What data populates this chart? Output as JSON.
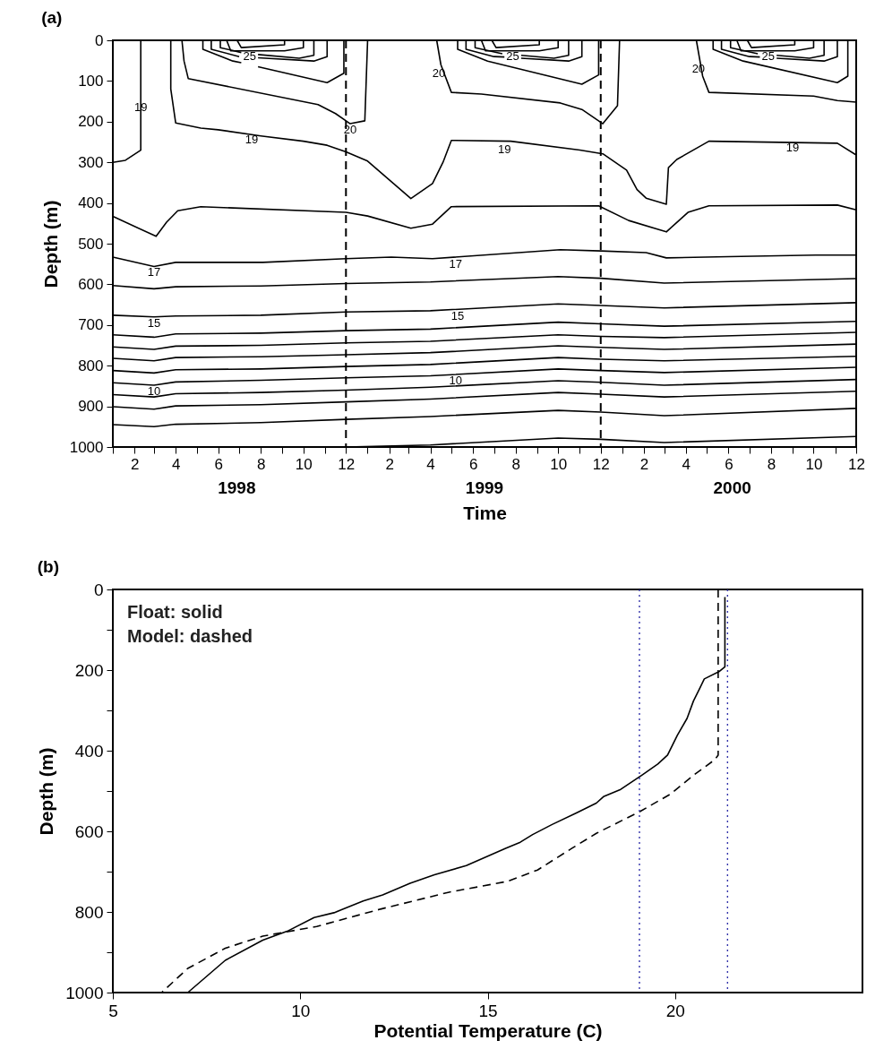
{
  "chart_data": [
    {
      "type": "line",
      "title": "(a)",
      "xlabel": "Time",
      "ylabel": "Depth (m)",
      "xlim": [
        "1998-01-01",
        "2000-12-01"
      ],
      "ylim": [
        1000,
        0
      ],
      "xticks": [
        {
          "value": "1998-01-01",
          "label": null
        },
        {
          "value": "1998-02-01",
          "label": "2"
        },
        {
          "value": "1998-03-01",
          "label": null
        },
        {
          "value": "1998-04-01",
          "label": "4"
        },
        {
          "value": "1998-05-01",
          "label": null
        },
        {
          "value": "1998-06-01",
          "label": "6"
        },
        {
          "value": "1998-07-01",
          "label": null
        },
        {
          "value": "1998-08-01",
          "label": "8"
        },
        {
          "value": "1998-09-01",
          "label": null
        },
        {
          "value": "1998-10-01",
          "label": "10"
        },
        {
          "value": "1998-11-01",
          "label": null
        },
        {
          "value": "1998-12-01",
          "label": "12"
        },
        {
          "value": "1999-01-01",
          "label": null
        },
        {
          "value": "1999-02-01",
          "label": "2"
        },
        {
          "value": "1999-03-01",
          "label": null
        },
        {
          "value": "1999-04-01",
          "label": "4"
        },
        {
          "value": "1999-05-01",
          "label": null
        },
        {
          "value": "1999-06-01",
          "label": "6"
        },
        {
          "value": "1999-07-01",
          "label": null
        },
        {
          "value": "1999-08-01",
          "label": "8"
        },
        {
          "value": "1999-09-01",
          "label": null
        },
        {
          "value": "1999-10-01",
          "label": "10"
        },
        {
          "value": "1999-11-01",
          "label": null
        },
        {
          "value": "1999-12-01",
          "label": "12"
        },
        {
          "value": "2000-01-01",
          "label": null
        },
        {
          "value": "2000-02-01",
          "label": "2"
        },
        {
          "value": "2000-03-01",
          "label": null
        },
        {
          "value": "2000-04-01",
          "label": "4"
        },
        {
          "value": "2000-05-01",
          "label": null
        },
        {
          "value": "2000-06-01",
          "label": "6"
        },
        {
          "value": "2000-07-01",
          "label": null
        },
        {
          "value": "2000-08-01",
          "label": "8"
        },
        {
          "value": "2000-09-01",
          "label": null
        },
        {
          "value": "2000-10-01",
          "label": "10"
        },
        {
          "value": "2000-11-01",
          "label": null
        },
        {
          "value": "2000-12-01",
          "label": "12"
        }
      ],
      "yticks": [
        0,
        100,
        200,
        300,
        400,
        500,
        600,
        700,
        800,
        900,
        1000
      ],
      "series": [
        {
          "color": "#000000",
          "x": [
            "1998-01-01",
            "1998-01-19",
            "1998-02-10",
            "1998-02-10"
          ],
          "values": [
            300,
            295,
            270,
            0
          ]
        },
        {
          "color": "#000000",
          "x": [
            "1998-03-25",
            "1998-03-25",
            "1998-04-01",
            "1998-05-07",
            "1998-06-01",
            "1998-08-01",
            "1998-10-01",
            "1998-11-04",
            "1998-12-01",
            "1999-01-01",
            "1999-03-04",
            "1999-04-04",
            "1999-04-19",
            "1999-05-01",
            "1999-07-25",
            "1999-11-01",
            "1999-12-04",
            "2000-01-07",
            "2000-01-22",
            "2000-02-04",
            "2000-03-04",
            "2000-03-07",
            "2000-03-19",
            "2000-05-04",
            "2000-11-04",
            "2000-12-01"
          ],
          "values": [
            0,
            120,
            203,
            216,
            220,
            235,
            248,
            258,
            274,
            297,
            389,
            352,
            300,
            246,
            248,
            270,
            279,
            319,
            367,
            388,
            403,
            313,
            293,
            248,
            253,
            282
          ]
        },
        {
          "color": "#000000",
          "x": [
            "1998-01-01",
            "1998-03-04",
            "1998-03-19",
            "1998-04-04",
            "1998-05-07",
            "1998-12-01",
            "1999-01-01",
            "1999-03-04",
            "1999-04-04",
            "1999-05-01",
            "1999-11-28",
            "2000-01-10",
            "2000-03-04",
            "2000-04-04",
            "2000-05-04",
            "2000-11-04",
            "2000-12-01"
          ],
          "values": [
            433,
            482,
            447,
            419,
            409,
            423,
            432,
            462,
            452,
            409,
            407,
            443,
            471,
            423,
            407,
            405,
            417
          ]
        },
        {
          "color": "#000000",
          "x": [
            "1998-01-01",
            "1998-03-01",
            "1998-04-01",
            "1998-08-04",
            "1998-12-01",
            "1999-02-04",
            "1999-04-04",
            "1999-10-04",
            "1999-12-01",
            "2000-02-04",
            "2000-03-04",
            "2000-06-01",
            "2000-10-04",
            "2000-12-01"
          ],
          "values": [
            533,
            556,
            546,
            546,
            537,
            533,
            537,
            515,
            518,
            522,
            535,
            532,
            528,
            528
          ]
        },
        {
          "color": "#000000",
          "x": [
            "1998-01-01",
            "1998-03-01",
            "1998-04-01",
            "1998-08-01",
            "1998-12-01",
            "1999-04-01",
            "1999-10-01",
            "1999-12-01",
            "2000-03-01",
            "2000-12-01"
          ],
          "values": [
            603,
            611,
            606,
            604,
            598,
            594,
            581,
            585,
            597,
            586
          ]
        },
        {
          "color": "#000000",
          "x": [
            "1998-01-01",
            "1998-03-01",
            "1998-04-01",
            "1998-08-01",
            "1998-12-01",
            "1999-04-01",
            "1999-10-01",
            "1999-12-01",
            "2000-03-01",
            "2000-12-01"
          ],
          "values": [
            676,
            680,
            678,
            676,
            668,
            665,
            648,
            652,
            658,
            645
          ]
        },
        {
          "color": "#000000",
          "x": [
            "1998-01-01",
            "1998-03-01",
            "1998-04-01",
            "1998-08-01",
            "1998-12-01",
            "1999-04-01",
            "1999-10-01",
            "1999-12-01",
            "2000-03-01",
            "2000-12-01"
          ],
          "values": [
            724,
            730,
            722,
            720,
            714,
            710,
            693,
            697,
            703,
            691
          ]
        },
        {
          "color": "#000000",
          "x": [
            "1998-01-01",
            "1998-03-01",
            "1998-04-01",
            "1998-08-01",
            "1998-12-01",
            "1999-04-01",
            "1999-10-01",
            "1999-12-01",
            "2000-03-01",
            "2000-12-01"
          ],
          "values": [
            754,
            760,
            752,
            750,
            744,
            740,
            724,
            728,
            731,
            718
          ]
        },
        {
          "color": "#000000",
          "x": [
            "1998-01-01",
            "1998-03-01",
            "1998-04-01",
            "1998-08-01",
            "1998-12-01",
            "1999-04-01",
            "1999-10-01",
            "1999-12-01",
            "2000-03-01",
            "2000-12-01"
          ],
          "values": [
            782,
            788,
            780,
            778,
            773,
            768,
            751,
            755,
            760,
            747
          ]
        },
        {
          "color": "#000000",
          "x": [
            "1998-01-01",
            "1998-03-01",
            "1998-04-01",
            "1998-08-01",
            "1998-12-01",
            "1999-04-01",
            "1999-10-01",
            "1999-12-01",
            "2000-03-01",
            "2000-12-01"
          ],
          "values": [
            812,
            818,
            810,
            808,
            802,
            797,
            780,
            784,
            788,
            777
          ]
        },
        {
          "color": "#000000",
          "x": [
            "1998-01-01",
            "1998-03-01",
            "1998-04-01",
            "1998-08-01",
            "1998-12-01",
            "1999-04-01",
            "1999-10-01",
            "1999-12-01",
            "2000-03-01",
            "2000-12-01"
          ],
          "values": [
            842,
            848,
            840,
            836,
            830,
            825,
            808,
            812,
            817,
            804
          ]
        },
        {
          "color": "#000000",
          "x": [
            "1998-01-01",
            "1998-03-01",
            "1998-04-01",
            "1998-08-01",
            "1998-12-01",
            "1999-04-01",
            "1999-10-01",
            "1999-12-01",
            "2000-03-01",
            "2000-12-01"
          ],
          "values": [
            871,
            877,
            869,
            866,
            860,
            853,
            837,
            841,
            848,
            834
          ]
        },
        {
          "color": "#000000",
          "x": [
            "1998-01-01",
            "1998-03-01",
            "1998-04-01",
            "1998-08-01",
            "1998-12-01",
            "1999-04-01",
            "1999-10-01",
            "1999-12-01",
            "2000-03-01",
            "2000-12-01"
          ],
          "values": [
            901,
            907,
            899,
            896,
            889,
            882,
            866,
            870,
            877,
            863
          ]
        },
        {
          "color": "#000000",
          "x": [
            "1998-01-01",
            "1998-03-01",
            "1998-04-01",
            "1998-08-01",
            "1998-12-01",
            "1999-04-01",
            "1999-10-01",
            "1999-12-01",
            "2000-03-01",
            "2000-12-01"
          ],
          "values": [
            945,
            950,
            944,
            940,
            932,
            925,
            910,
            914,
            923,
            905
          ]
        },
        {
          "color": "#000000",
          "x": [
            "1998-12-01",
            "1999-04-01",
            "1999-10-01",
            "1999-12-01",
            "2000-03-01",
            "2000-12-01"
          ],
          "values": [
            1000,
            995,
            978,
            981,
            989,
            974
          ]
        },
        {
          "color": "#000000",
          "x": [
            "1998-04-10",
            "1998-04-13",
            "1998-04-19",
            "1998-10-22",
            "1998-11-16",
            "1998-12-07",
            "1998-12-28",
            "1999-01-01"
          ],
          "values": [
            0,
            51,
            94,
            158,
            180,
            205,
            198,
            0
          ]
        },
        {
          "color": "#000000",
          "x": [
            "1998-05-10",
            "1998-05-10",
            "1998-06-22",
            "1998-07-04",
            "1998-07-16",
            "1998-07-28",
            "1998-11-04",
            "1998-11-28",
            "1998-11-28"
          ],
          "values": [
            0,
            22,
            51,
            55,
            null,
            65,
            104,
            81,
            0
          ]
        },
        {
          "color": "#000000",
          "x": [
            "1998-05-22",
            "1998-05-22",
            "1998-07-01",
            "1998-07-16",
            "1998-07-28",
            "1998-10-16",
            "1998-11-04",
            "1998-11-04"
          ],
          "values": [
            0,
            22,
            40,
            null,
            43,
            51,
            40,
            0
          ]
        },
        {
          "color": "#000000",
          "x": [
            "1998-06-04",
            "1998-06-04",
            "1998-07-04",
            "1998-07-16",
            "1998-07-28",
            "1998-09-25",
            "1998-10-16",
            "1998-10-16"
          ],
          "values": [
            0,
            18,
            30,
            null,
            35,
            44,
            37,
            0
          ]
        },
        {
          "color": "#000000",
          "x": [
            "1998-06-13",
            "1998-06-19",
            "1998-09-04",
            "1998-10-01",
            "1998-10-01"
          ],
          "values": [
            0,
            26,
            26,
            18,
            0
          ]
        },
        {
          "color": "#000000",
          "x": [
            "1998-06-28",
            "1998-07-04",
            "1998-09-04",
            "1998-09-04"
          ],
          "values": [
            0,
            18,
            11,
            0
          ]
        },
        {
          "color": "#000000",
          "x": [
            "1999-04-10",
            "1999-04-16",
            "1999-05-01",
            "1999-06-13",
            "1999-10-04",
            "1999-11-04",
            "1999-12-04",
            "1999-12-25",
            "1999-12-28"
          ],
          "values": [
            0,
            60,
            128,
            132,
            154,
            170,
            205,
            161,
            0
          ]
        },
        {
          "color": "#000000",
          "x": [
            "1999-05-10",
            "1999-05-10",
            "1999-06-22",
            "1999-11-04",
            "1999-11-28",
            "1999-11-28"
          ],
          "values": [
            0,
            22,
            51,
            108,
            85,
            0
          ]
        },
        {
          "color": "#000000",
          "x": [
            "1999-05-22",
            "1999-05-22",
            "1999-07-01",
            "1999-07-16",
            "1999-07-28",
            "1999-08-09",
            "1999-10-16",
            "1999-11-04",
            "1999-11-04"
          ],
          "values": [
            0,
            22,
            40,
            41,
            null,
            44,
            51,
            40,
            0
          ]
        },
        {
          "color": "#000000",
          "x": [
            "1999-06-04",
            "1999-06-04",
            "1999-07-13",
            "1999-07-28",
            "1999-08-09",
            "1999-09-25",
            "1999-10-16",
            "1999-10-16"
          ],
          "values": [
            0,
            18,
            33,
            null,
            37,
            44,
            37,
            0
          ]
        },
        {
          "color": "#000000",
          "x": [
            "1999-06-13",
            "1999-06-19",
            "1999-09-04",
            "1999-10-01",
            "1999-10-01"
          ],
          "values": [
            0,
            26,
            26,
            18,
            0
          ]
        },
        {
          "color": "#000000",
          "x": [
            "1999-06-28",
            "1999-07-04",
            "1999-09-04",
            "1999-09-04"
          ],
          "values": [
            0,
            18,
            11,
            0
          ]
        },
        {
          "color": "#000000",
          "x": [
            "2000-04-16",
            "2000-04-25",
            "2000-05-04",
            "2000-10-01",
            "2000-11-04",
            "2000-12-01"
          ],
          "values": [
            0,
            88,
            128,
            137,
            148,
            152
          ]
        },
        {
          "color": "#000000",
          "x": [
            "2000-05-10",
            "2000-05-10",
            "2000-06-22",
            "2000-11-04",
            "2000-11-19",
            "2000-11-19"
          ],
          "values": [
            0,
            22,
            51,
            104,
            88,
            0
          ]
        },
        {
          "color": "#000000",
          "x": [
            "2000-05-22",
            "2000-05-22",
            "2000-07-01",
            "2000-07-16",
            "2000-07-28",
            "2000-08-09",
            "2000-10-16",
            "2000-11-04",
            "2000-11-04"
          ],
          "values": [
            0,
            22,
            40,
            41,
            null,
            44,
            51,
            40,
            0
          ]
        },
        {
          "color": "#000000",
          "x": [
            "2000-06-04",
            "2000-06-04",
            "2000-07-13",
            "2000-07-28",
            "2000-08-09",
            "2000-09-25",
            "2000-10-16",
            "2000-10-16"
          ],
          "values": [
            0,
            18,
            33,
            null,
            37,
            44,
            37,
            0
          ]
        },
        {
          "color": "#000000",
          "x": [
            "2000-06-13",
            "2000-06-19",
            "2000-09-04",
            "2000-10-01",
            "2000-10-01"
          ],
          "values": [
            0,
            26,
            26,
            18,
            0
          ]
        },
        {
          "color": "#000000",
          "x": [
            "2000-06-28",
            "2000-07-04",
            "2000-09-04",
            "2000-09-04"
          ],
          "values": [
            0,
            18,
            11,
            0
          ]
        }
      ],
      "ref_lines": [
        {
          "axis": "x",
          "value": "1998-12-01",
          "color": "#000000",
          "line_style": "dashed"
        },
        {
          "axis": "x",
          "value": "1999-12-01",
          "color": "#000000",
          "line_style": "dashed"
        }
      ],
      "annotations": [
        {
          "text": "25",
          "x": "1998-07-16",
          "y": 25
        },
        {
          "text": "25",
          "x": "1999-07-28",
          "y": 25
        },
        {
          "text": "25",
          "x": "2000-07-28",
          "y": 25
        },
        {
          "text": "20",
          "x": "1998-12-07",
          "y": 205
        },
        {
          "text": "20",
          "x": "1999-04-13",
          "y": 65
        },
        {
          "text": "20",
          "x": "2000-04-19",
          "y": 55
        },
        {
          "text": "19",
          "x": "1998-02-10",
          "y": 150
        },
        {
          "text": "19",
          "x": "1998-07-19",
          "y": 228
        },
        {
          "text": "19",
          "x": "1999-07-16",
          "y": 253
        },
        {
          "text": "19",
          "x": "2000-09-01",
          "y": 248
        },
        {
          "text": "17",
          "x": "1998-03-01",
          "y": 556
        },
        {
          "text": "17",
          "x": "1999-05-07",
          "y": 535
        },
        {
          "text": "15",
          "x": "1998-03-01",
          "y": 680
        },
        {
          "text": "15",
          "x": "1999-05-10",
          "y": 662
        },
        {
          "text": "10",
          "x": "1998-03-01",
          "y": 848
        },
        {
          "text": "10",
          "x": "1999-05-07",
          "y": 822
        },
        "1998",
        "1999",
        "2000"
      ]
    },
    {
      "type": "line",
      "title": "(b)",
      "xlabel": "Potential Temperature (C)",
      "ylabel": "Depth (m)",
      "xlim": [
        5,
        25
      ],
      "ylim": [
        1000,
        0
      ],
      "xticks": [
        5,
        10,
        15,
        20
      ],
      "yticks": [
        0,
        {
          "value": 100,
          "label": null
        },
        200,
        {
          "value": 300,
          "label": null
        },
        400,
        {
          "value": 500,
          "label": null
        },
        600,
        {
          "value": 700,
          "label": null
        },
        800,
        {
          "value": 900,
          "label": null
        },
        1000
      ],
      "series": [
        {
          "color": "#000000",
          "line_style": "solid",
          "x": [
            21.33,
            21.33,
            21.17,
            20.78,
            20.65,
            20.49,
            20.32,
            20.06,
            19.8,
            19.54,
            19.14,
            18.55,
            18.09,
            17.9,
            17.38,
            16.72,
            16.2,
            15.87,
            15.48,
            14.43,
            13.58,
            12.93,
            12.2,
            11.68,
            10.9,
            10.37,
            9.65,
            9.0,
            8.0,
            7.5,
            7.0
          ],
          "values": [
            19,
            192,
            204,
            222,
            247,
            277,
            320,
            362,
            411,
            433,
            459,
            496,
            514,
            530,
            554,
            583,
            608,
            627,
            642,
            685,
            708,
            729,
            758,
            773,
            802,
            814,
            848,
            870,
            920,
            960,
            1000
          ]
        },
        {
          "color": "#000000",
          "line_style": "dashed",
          "x": [
            21.15,
            21.15,
            21.05,
            20.52,
            19.87,
            19.08,
            17.9,
            17.25,
            16.33,
            15.54,
            13.97,
            12.14,
            10.44,
            9.0,
            8.0,
            7.0,
            6.3
          ],
          "values": [
            0,
            411,
            423,
            459,
            508,
            550,
            605,
            642,
            696,
            724,
            751,
            793,
            836,
            860,
            890,
            940,
            1000
          ]
        }
      ],
      "ref_lines": [
        {
          "axis": "x",
          "value": 19.05,
          "color": "#3333aa",
          "line_style": "dotted"
        },
        {
          "axis": "x",
          "value": 21.4,
          "color": "#3333aa",
          "line_style": "dotted"
        }
      ],
      "annotations": [
        "Float: solid",
        "Model: dashed"
      ]
    }
  ]
}
